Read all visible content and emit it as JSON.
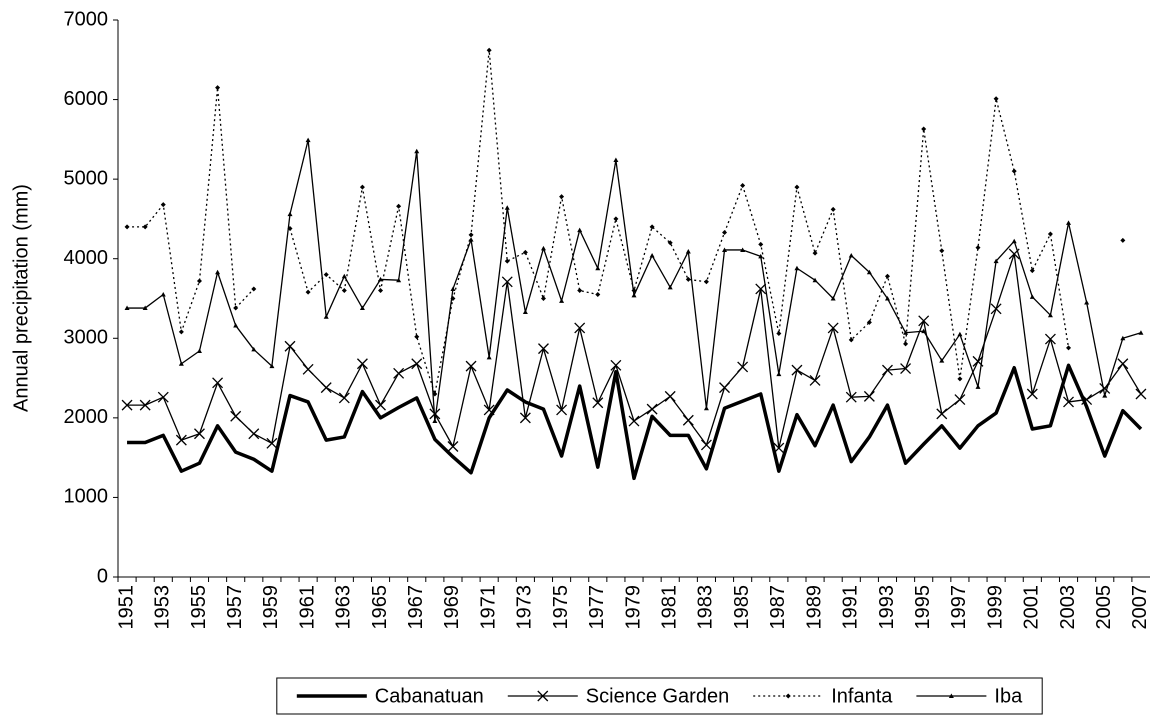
{
  "chart_data": {
    "type": "line",
    "y_label": "Annual precipitation (mm)",
    "categories": [
      "1951",
      null,
      "1953",
      null,
      "1955",
      null,
      "1957",
      null,
      "1959",
      null,
      "1961",
      null,
      "1963",
      null,
      "1965",
      null,
      "1967",
      null,
      "1969",
      null,
      "1971",
      null,
      "1973",
      null,
      "1975",
      null,
      "1977",
      null,
      "1979",
      null,
      "1981",
      null,
      "1983",
      null,
      "1985",
      null,
      "1987",
      null,
      "1989",
      null,
      "1991",
      null,
      "1993",
      null,
      "1995",
      null,
      "1997",
      null,
      "1999",
      null,
      "2001",
      null,
      "2003",
      null,
      "2005",
      null,
      "2007"
    ],
    "ylim": [
      0,
      7000
    ],
    "yticks": [
      0,
      1000,
      2000,
      3000,
      4000,
      5000,
      6000,
      7000
    ],
    "grid": false,
    "legend": "bottom",
    "series": [
      {
        "name": "Cabanatuan",
        "color": "#000000",
        "width": 3.5,
        "dash": "none",
        "marker": "none",
        "values": [
          1690,
          1690,
          1780,
          1330,
          1430,
          1900,
          1570,
          1480,
          1330,
          2280,
          2200,
          1720,
          1760,
          2330,
          2000,
          2130,
          2250,
          1730,
          1510,
          1310,
          2000,
          2350,
          2200,
          2110,
          1520,
          2400,
          1380,
          2580,
          1240,
          2020,
          1780,
          1780,
          1360,
          2120,
          2210,
          2300,
          1330,
          2040,
          1650,
          2160,
          1450,
          1760,
          2160,
          1430,
          1670,
          1900,
          1620,
          1900,
          2060,
          2630,
          1860,
          1900,
          2660,
          2140,
          1520,
          2090,
          1860
        ]
      },
      {
        "name": "Science Garden",
        "color": "#000000",
        "width": 1.3,
        "dash": "none",
        "marker": "x",
        "values": [
          2160,
          2160,
          2260,
          1720,
          1800,
          2440,
          2020,
          1800,
          1680,
          2900,
          2610,
          2380,
          2250,
          2680,
          2160,
          2560,
          2680,
          2050,
          1640,
          2650,
          2100,
          3710,
          2000,
          2870,
          2100,
          3130,
          2190,
          2660,
          1960,
          2110,
          2270,
          1970,
          1660,
          2380,
          2640,
          3620,
          1620,
          2600,
          2470,
          3130,
          2260,
          2270,
          2600,
          2620,
          3220,
          2050,
          2230,
          2710,
          3370,
          4060,
          2300,
          2990,
          2200,
          2230,
          2370,
          2680,
          2300
        ]
      },
      {
        "name": "Infanta",
        "color": "#000000",
        "width": 1.3,
        "dash": "2,3",
        "marker": "diamond",
        "values": [
          4400,
          4400,
          4680,
          3080,
          3720,
          6150,
          3380,
          3620,
          null,
          4380,
          3580,
          3800,
          3600,
          4900,
          3600,
          4660,
          3020,
          2300,
          3500,
          4300,
          6620,
          3970,
          4080,
          3500,
          4780,
          3600,
          3550,
          4500,
          3600,
          4400,
          4200,
          3740,
          3710,
          4330,
          4920,
          4180,
          3060,
          4900,
          4070,
          4620,
          2980,
          3200,
          3780,
          2930,
          5630,
          4100,
          2490,
          4140,
          6010,
          5100,
          3850,
          4310,
          2880,
          null,
          null,
          4230,
          null
        ]
      },
      {
        "name": "Iba",
        "color": "#000000",
        "width": 1.3,
        "dash": "none",
        "marker": "triangle",
        "values": [
          3380,
          3380,
          3550,
          2680,
          2840,
          3830,
          3160,
          2860,
          2650,
          4560,
          5490,
          3270,
          3780,
          3380,
          3740,
          3730,
          5350,
          1960,
          3620,
          4240,
          2760,
          4640,
          3330,
          4130,
          3470,
          4360,
          3880,
          5240,
          3540,
          4040,
          3640,
          4090,
          2120,
          4110,
          4110,
          4030,
          2550,
          3880,
          3730,
          3500,
          4040,
          3830,
          3500,
          3070,
          3090,
          2720,
          3050,
          2390,
          3970,
          4220,
          3520,
          3290,
          4450,
          3450,
          2280,
          3000,
          3070
        ]
      }
    ]
  }
}
